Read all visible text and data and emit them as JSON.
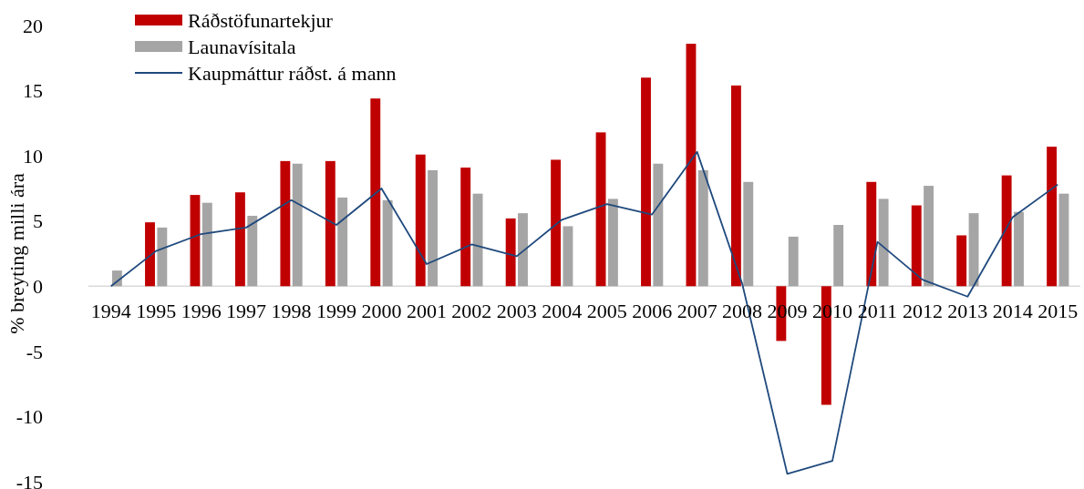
{
  "chart_data": {
    "type": "bar",
    "ylabel": "% breyting milli ára",
    "categories": [
      "1994",
      "1995",
      "1996",
      "1997",
      "1998",
      "1999",
      "2000",
      "2001",
      "2002",
      "2003",
      "2004",
      "2005",
      "2006",
      "2007",
      "2008",
      "2009",
      "2010",
      "2011",
      "2012",
      "2013",
      "2014",
      "2015"
    ],
    "series": [
      {
        "name": "Ráðstöfunartekjur",
        "color": "#c00000",
        "values": [
          null,
          4.9,
          7.0,
          7.2,
          9.6,
          9.6,
          14.4,
          10.1,
          9.1,
          5.2,
          9.7,
          11.8,
          16.0,
          18.6,
          15.4,
          -4.2,
          -9.1,
          8.0,
          6.2,
          3.9,
          8.5,
          10.7
        ]
      },
      {
        "name": "Launavísitala",
        "color": "#a5a5a5",
        "values": [
          1.2,
          4.5,
          6.4,
          5.4,
          9.4,
          6.8,
          6.6,
          8.9,
          7.1,
          5.6,
          4.6,
          6.7,
          9.4,
          8.9,
          8.0,
          3.8,
          4.7,
          6.7,
          7.7,
          5.6,
          5.7,
          7.1
        ]
      },
      {
        "name": "Kaupmáttur ráðst. á mann",
        "type": "line",
        "color": "#1f497d",
        "values": [
          0,
          2.7,
          4.0,
          4.5,
          6.6,
          4.7,
          7.5,
          1.7,
          3.2,
          2.3,
          5.1,
          6.3,
          5.5,
          10.3,
          0.2,
          -14.4,
          -13.4,
          3.4,
          0.5,
          -0.8,
          5.3,
          7.8
        ]
      }
    ],
    "ylim": [
      -15,
      20
    ],
    "yticks": [
      -15,
      -10,
      -5,
      0,
      5,
      10,
      15,
      20
    ],
    "grid": false,
    "legend": "top left"
  }
}
